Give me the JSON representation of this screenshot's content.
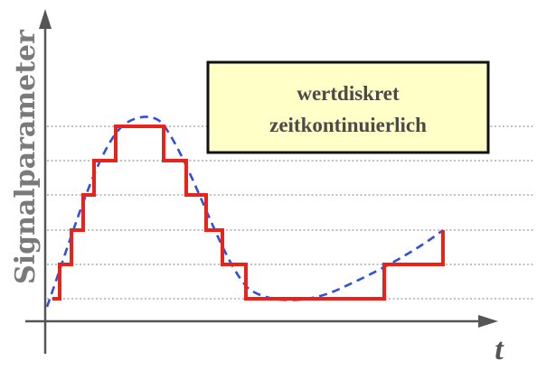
{
  "diagram": {
    "y_axis_label": "Signalparameter",
    "x_axis_label": "t",
    "legend_box": {
      "line1": "wertdiskret",
      "line2": "zeitkontinuierlich"
    },
    "colors": {
      "quantized": "#e8231c",
      "analog": "#2f4fe0",
      "axes": "#555555",
      "grid": "#9a9a9a",
      "box_fill": "#ffffc8",
      "box_border": "#111111"
    }
  }
}
